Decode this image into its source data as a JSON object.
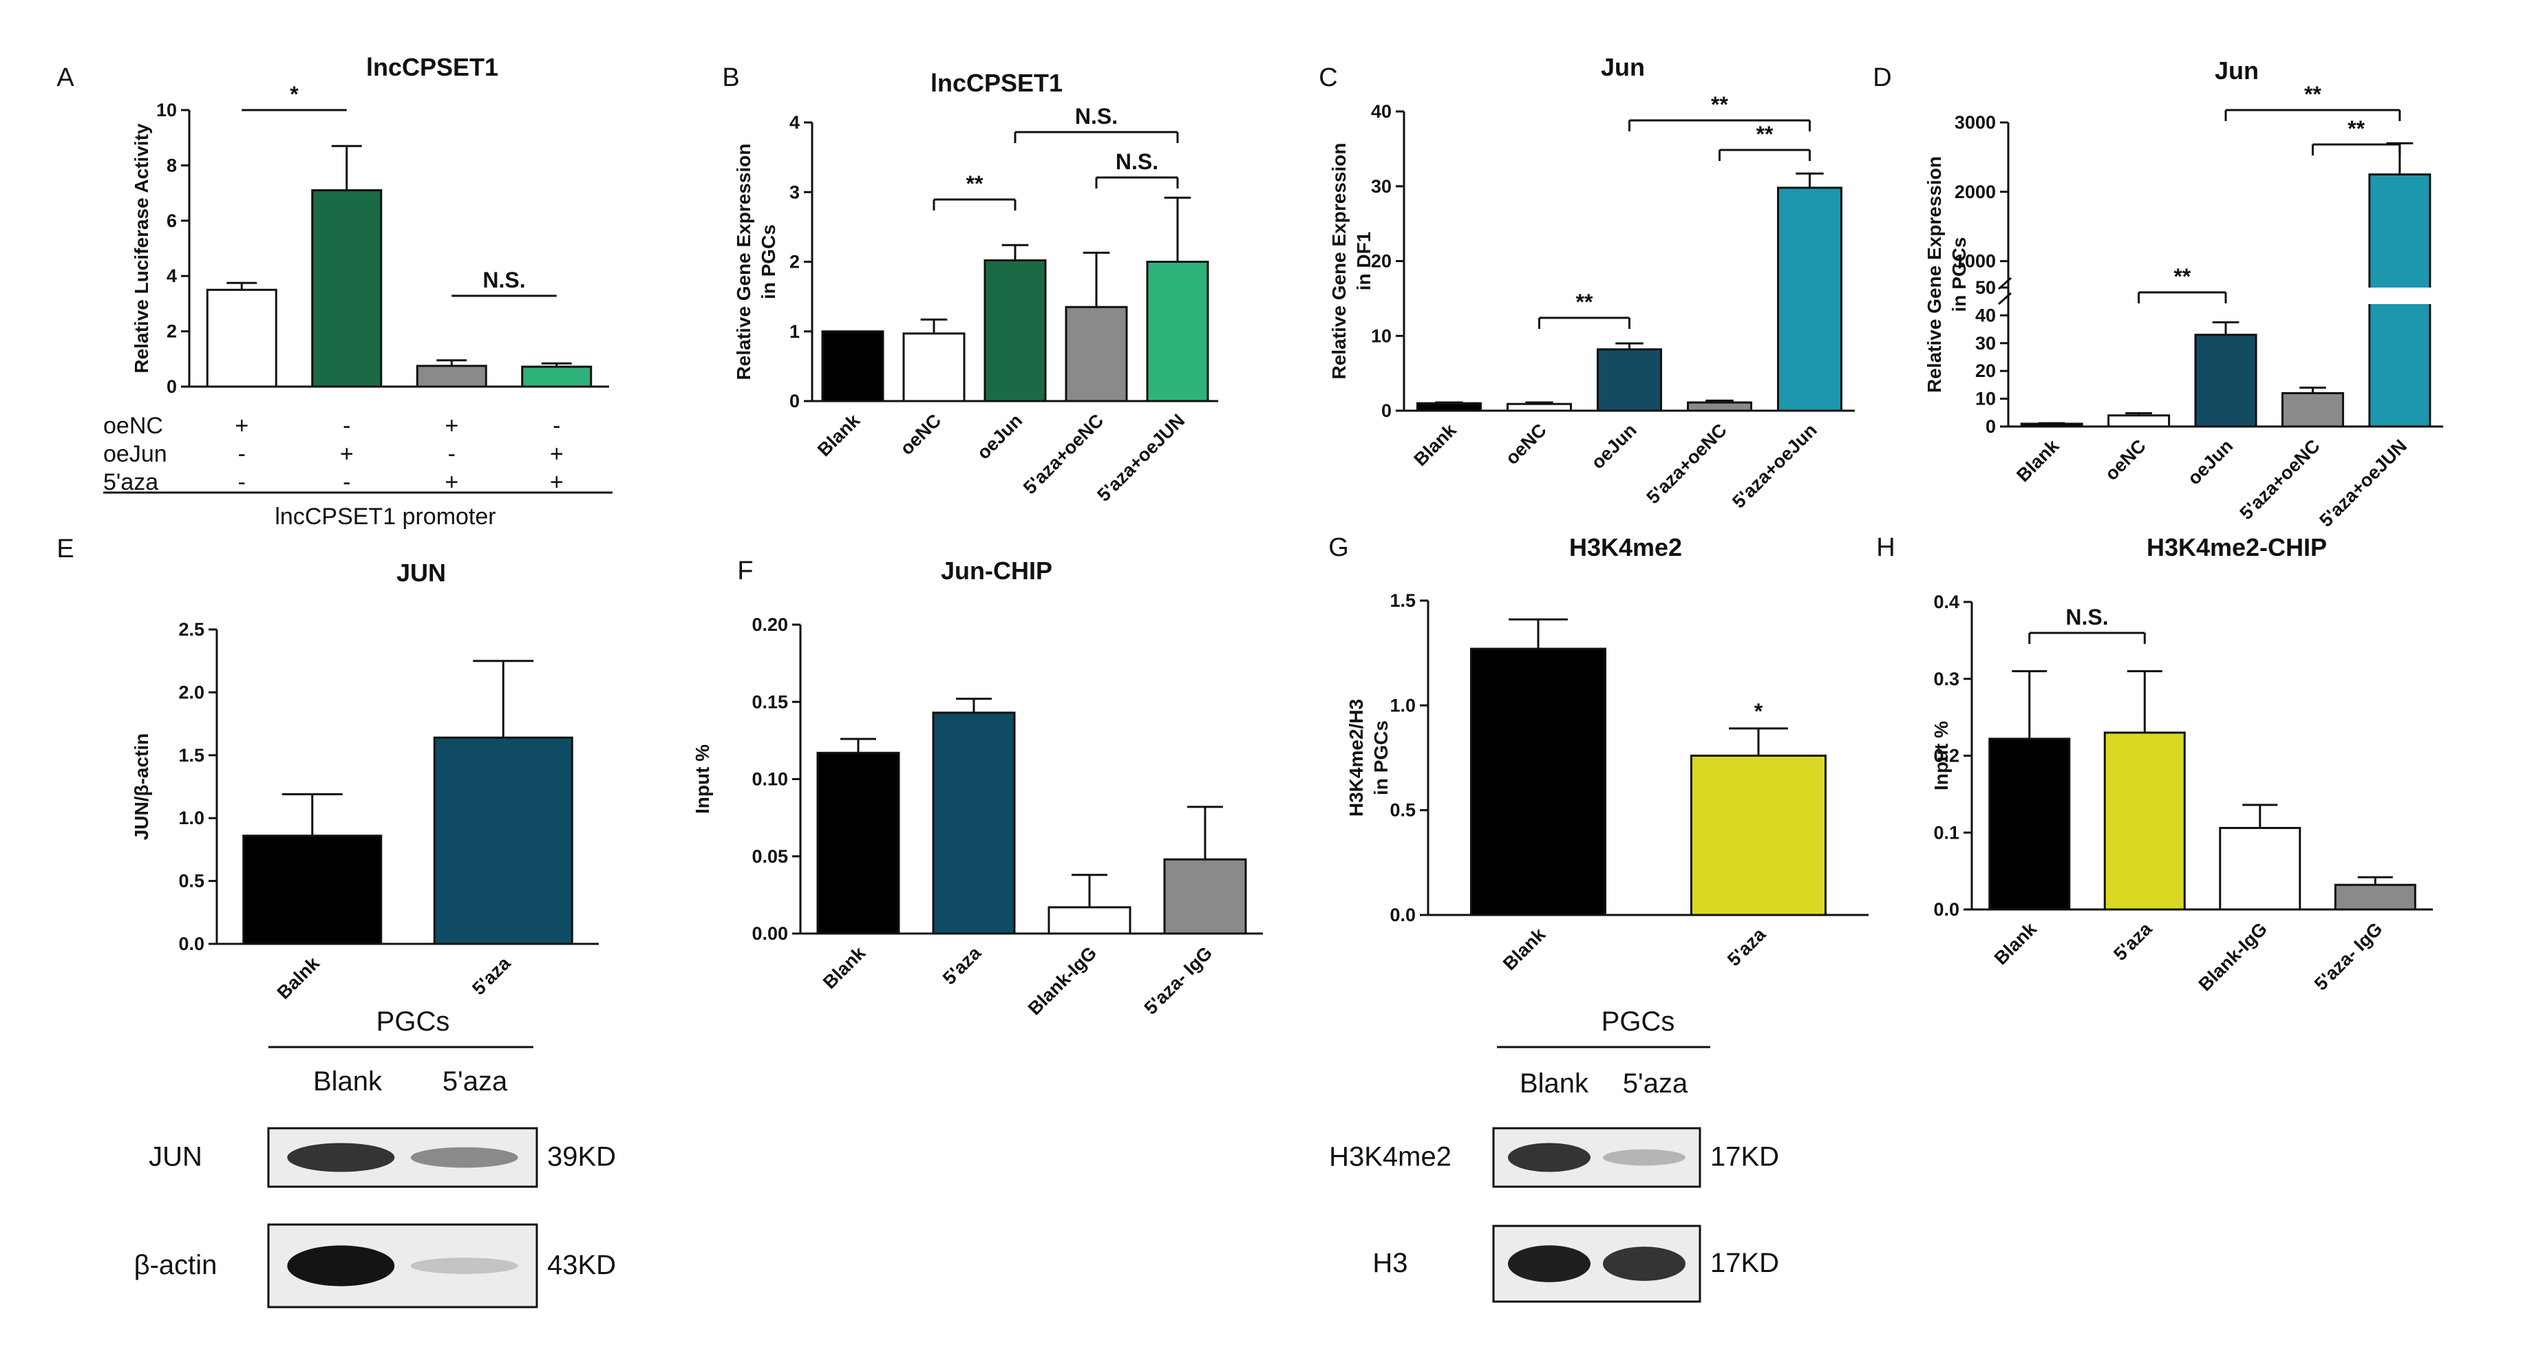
{
  "chart_data": [
    {
      "id": "A",
      "type": "bar",
      "title": "lncCPSET1",
      "ylabel": "Relative Luciferase Activity",
      "xlabel": "",
      "ylim": [
        0,
        10
      ],
      "yticks": [
        "0",
        "2",
        "4",
        "6",
        "8",
        "10"
      ],
      "categories": [
        "oeNC",
        "oeJun",
        "5'aza+oeNC",
        "5'aza+oeJun"
      ],
      "values": [
        3.5,
        7.1,
        0.75,
        0.72
      ],
      "errors": [
        0.25,
        1.6,
        0.2,
        0.12
      ],
      "colors": [
        "#ffffff",
        "#1a6b45",
        "#8a8a8a",
        "#2db37a"
      ],
      "significance": [
        {
          "from": 0,
          "to": 1,
          "label": "*"
        },
        {
          "from": 2,
          "to": 3,
          "label": "N.S."
        }
      ],
      "treatment_matrix": {
        "rows": [
          {
            "label": "oeNC",
            "signs": [
              "+",
              "-",
              "+",
              "-"
            ]
          },
          {
            "label": "oeJun",
            "signs": [
              "-",
              "+",
              "-",
              "+"
            ]
          },
          {
            "label": "5'aza",
            "signs": [
              "-",
              "-",
              "+",
              "+"
            ]
          }
        ],
        "footer": "lncCPSET1 promoter"
      }
    },
    {
      "id": "B",
      "type": "bar",
      "title": "lncCPSET1",
      "ylabel": "Relative Gene Expression in PGCs",
      "xlabel": "",
      "ylim": [
        0,
        4
      ],
      "yticks": [
        "0",
        "1",
        "2",
        "3",
        "4"
      ],
      "categories": [
        "Blank",
        "oeNC",
        "oeJun",
        "5'aza+oeNC",
        "5'aza+oeJUN"
      ],
      "values": [
        1.0,
        0.97,
        2.02,
        1.35,
        2.0
      ],
      "errors": [
        0.0,
        0.2,
        0.22,
        0.78,
        0.92
      ],
      "colors": [
        "#000000",
        "#ffffff",
        "#1a6b45",
        "#8a8a8a",
        "#2db37a"
      ],
      "significance": [
        {
          "from": 1,
          "to": 2,
          "label": "**"
        },
        {
          "from": 3,
          "to": 4,
          "label": "N.S."
        },
        {
          "from": 2,
          "to": 4,
          "label": "N.S."
        }
      ]
    },
    {
      "id": "C",
      "type": "bar",
      "title": "Jun",
      "ylabel": "Relative Gene Expression in DF1",
      "xlabel": "",
      "ylim": [
        0,
        40
      ],
      "yticks": [
        "0",
        "10",
        "20",
        "30",
        "40"
      ],
      "categories": [
        "Blank",
        "oeNC",
        "oeJun",
        "5'aza+oeNC",
        "5'aza+oeJun"
      ],
      "values": [
        1.0,
        0.9,
        8.2,
        1.1,
        29.8
      ],
      "errors": [
        0.1,
        0.2,
        0.8,
        0.25,
        1.9
      ],
      "colors": [
        "#000000",
        "#ffffff",
        "#134b63",
        "#8a8a8a",
        "#1c97ad"
      ],
      "significance": [
        {
          "from": 1,
          "to": 2,
          "label": "**"
        },
        {
          "from": 3,
          "to": 4,
          "label": "**"
        },
        {
          "from": 2,
          "to": 4,
          "label": "**"
        }
      ]
    },
    {
      "id": "D",
      "type": "bar",
      "title": "Jun",
      "ylabel": "Relative Gene Expression in PGCs",
      "xlabel": "",
      "axis_break": {
        "lower": [
          0,
          50
        ],
        "upper": [
          500,
          3000
        ]
      },
      "yticks_lower": [
        "0",
        "10",
        "20",
        "30",
        "40",
        "50"
      ],
      "yticks_upper": [
        "1000",
        "2000",
        "3000"
      ],
      "categories": [
        "Blank",
        "oeNC",
        "oeJun",
        "5'aza+oeNC",
        "5'aza+oeJUN"
      ],
      "values": [
        1.0,
        4.0,
        33.0,
        12.0,
        2250
      ],
      "errors": [
        0.2,
        0.8,
        4.5,
        2.0,
        450
      ],
      "colors": [
        "#000000",
        "#ffffff",
        "#134b63",
        "#8a8a8a",
        "#1c97ad"
      ],
      "significance": [
        {
          "from": 1,
          "to": 2,
          "label": "**"
        },
        {
          "from": 3,
          "to": 4,
          "label": "**"
        },
        {
          "from": 2,
          "to": 4,
          "label": "**"
        }
      ]
    },
    {
      "id": "E",
      "type": "bar",
      "title": "JUN",
      "ylabel": "JUN/β-actin",
      "xlabel": "",
      "ylim": [
        0,
        2.5
      ],
      "yticks": [
        "0.0",
        "0.5",
        "1.0",
        "1.5",
        "2.0",
        "2.5"
      ],
      "categories": [
        "Balnk",
        "5'aza"
      ],
      "values": [
        0.86,
        1.64
      ],
      "errors": [
        0.33,
        0.61
      ],
      "colors": [
        "#000000",
        "#0f4b63"
      ],
      "significance": []
    },
    {
      "id": "F",
      "type": "bar",
      "title": "Jun-CHIP",
      "ylabel": "Input %",
      "xlabel": "",
      "ylim": [
        0,
        0.2
      ],
      "yticks": [
        "0.00",
        "0.05",
        "0.10",
        "0.15",
        "0.20"
      ],
      "categories": [
        "Blank",
        "5'aza",
        "Blank-IgG",
        "5'aza- IgG"
      ],
      "values": [
        0.117,
        0.143,
        0.017,
        0.048
      ],
      "errors": [
        0.009,
        0.009,
        0.021,
        0.034
      ],
      "colors": [
        "#000000",
        "#0f4b63",
        "#ffffff",
        "#8a8a8a"
      ],
      "significance": []
    },
    {
      "id": "G",
      "type": "bar",
      "title": "H3K4me2",
      "ylabel": "H3K4me2/H3 in PGCs",
      "xlabel": "",
      "ylim": [
        0,
        1.5
      ],
      "yticks": [
        "0.0",
        "0.5",
        "1.0",
        "1.5"
      ],
      "categories": [
        "Blank",
        "5'aza"
      ],
      "values": [
        1.27,
        0.76
      ],
      "errors": [
        0.14,
        0.13
      ],
      "colors": [
        "#000000",
        "#d9d924"
      ],
      "significance": [
        {
          "over": 1,
          "label": "*"
        }
      ]
    },
    {
      "id": "H",
      "type": "bar",
      "title": "H3K4me2-CHIP",
      "ylabel": "Input %",
      "xlabel": "",
      "ylim": [
        0,
        0.4
      ],
      "yticks": [
        "0.0",
        "0.1",
        "0.2",
        "0.3",
        "0.4"
      ],
      "categories": [
        "Blank",
        "5'aza",
        "Blank-IgG",
        "5'aza- IgG"
      ],
      "values": [
        0.222,
        0.23,
        0.106,
        0.032
      ],
      "errors": [
        0.088,
        0.08,
        0.03,
        0.01
      ],
      "colors": [
        "#000000",
        "#d9d924",
        "#ffffff",
        "#8a8a8a"
      ],
      "significance": [
        {
          "from": 0,
          "to": 1,
          "label": "N.S."
        }
      ]
    }
  ],
  "western_blots": [
    {
      "panel": "E",
      "group_label": "PGCs",
      "lanes": [
        "Blank",
        "5'aza"
      ],
      "rows": [
        {
          "protein": "JUN",
          "size": "39KD",
          "intensity": [
            0.85,
            0.45
          ]
        },
        {
          "protein": "β-actin",
          "size": "43KD",
          "intensity": [
            1.0,
            0.18
          ]
        }
      ]
    },
    {
      "panel": "G",
      "group_label": "PGCs",
      "lanes": [
        "Blank",
        "5'aza"
      ],
      "rows": [
        {
          "protein": "H3K4me2",
          "size": "17KD",
          "intensity": [
            0.85,
            0.25
          ]
        },
        {
          "protein": "H3",
          "size": "17KD",
          "intensity": [
            0.95,
            0.85
          ]
        }
      ]
    }
  ]
}
